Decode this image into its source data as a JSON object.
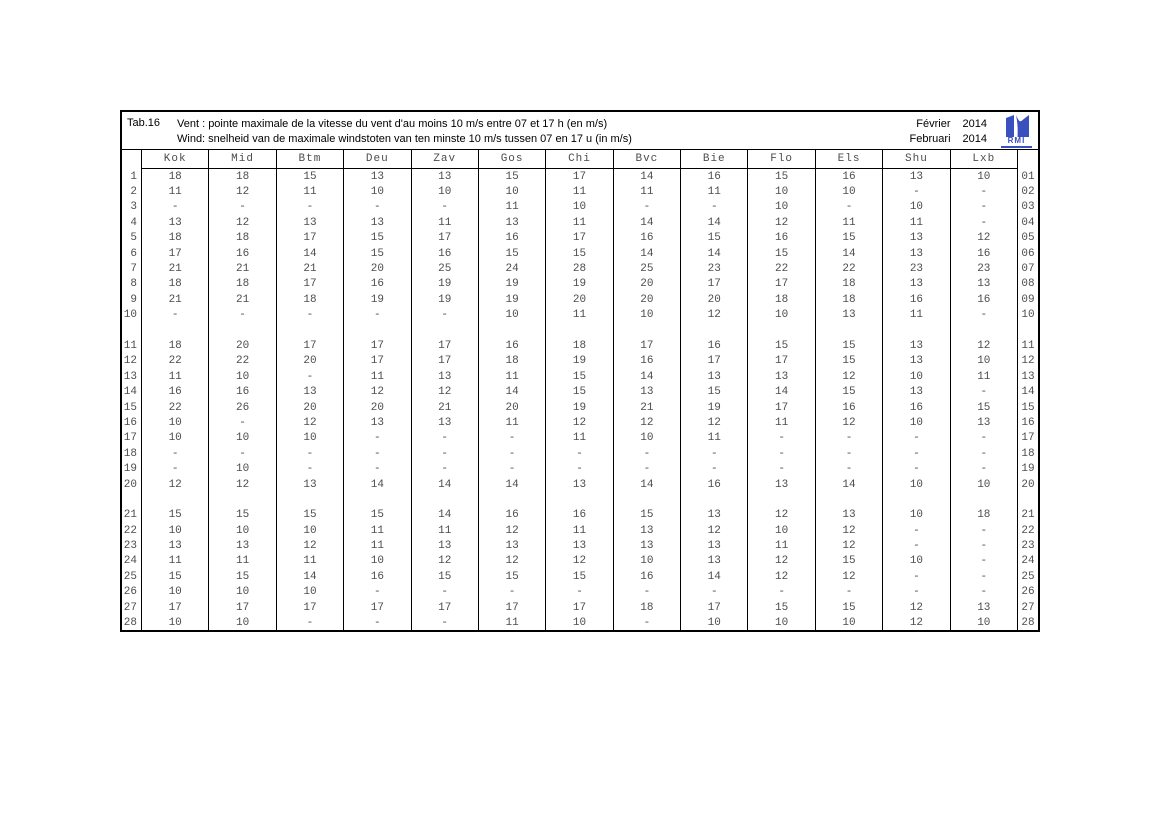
{
  "header": {
    "tab_label": "Tab.16",
    "title_fr": "Vent : pointe maximale de la vitesse du vent d'au moins 10 m/s entre 07 et 17 h (en m/s)",
    "title_nl": "Wind: snelheid van de maximale windstoten van ten minste 10 m/s tussen 07 en 17 u (in m/s)",
    "month_fr": "Février",
    "month_nl": "Februari",
    "year": "2014",
    "logo_text": "RMI",
    "logo_color": "#3a50bf"
  },
  "table": {
    "columns": [
      "Kok",
      "Mid",
      "Btm",
      "Deu",
      "Zav",
      "Gos",
      "Chi",
      "Bvc",
      "Bie",
      "Flo",
      "Els",
      "Shu",
      "Lxb"
    ],
    "missing_symbol": "-",
    "spacer_after_days": [
      "10",
      "20"
    ],
    "rows": [
      {
        "day": "1",
        "code": "01",
        "values": [
          "18",
          "18",
          "15",
          "13",
          "13",
          "15",
          "17",
          "14",
          "16",
          "15",
          "16",
          "13",
          "10"
        ]
      },
      {
        "day": "2",
        "code": "02",
        "values": [
          "11",
          "12",
          "11",
          "10",
          "10",
          "10",
          "11",
          "11",
          "11",
          "10",
          "10",
          "-",
          "-"
        ]
      },
      {
        "day": "3",
        "code": "03",
        "values": [
          "-",
          "-",
          "-",
          "-",
          "-",
          "11",
          "10",
          "-",
          "-",
          "10",
          "-",
          "10",
          "-"
        ]
      },
      {
        "day": "4",
        "code": "04",
        "values": [
          "13",
          "12",
          "13",
          "13",
          "11",
          "13",
          "11",
          "14",
          "14",
          "12",
          "11",
          "11",
          "-"
        ]
      },
      {
        "day": "5",
        "code": "05",
        "values": [
          "18",
          "18",
          "17",
          "15",
          "17",
          "16",
          "17",
          "16",
          "15",
          "16",
          "15",
          "13",
          "12"
        ]
      },
      {
        "day": "6",
        "code": "06",
        "values": [
          "17",
          "16",
          "14",
          "15",
          "16",
          "15",
          "15",
          "14",
          "14",
          "15",
          "14",
          "13",
          "16"
        ]
      },
      {
        "day": "7",
        "code": "07",
        "values": [
          "21",
          "21",
          "21",
          "20",
          "25",
          "24",
          "28",
          "25",
          "23",
          "22",
          "22",
          "23",
          "23"
        ]
      },
      {
        "day": "8",
        "code": "08",
        "values": [
          "18",
          "18",
          "17",
          "16",
          "19",
          "19",
          "19",
          "20",
          "17",
          "17",
          "18",
          "13",
          "13"
        ]
      },
      {
        "day": "9",
        "code": "09",
        "values": [
          "21",
          "21",
          "18",
          "19",
          "19",
          "19",
          "20",
          "20",
          "20",
          "18",
          "18",
          "16",
          "16"
        ]
      },
      {
        "day": "10",
        "code": "10",
        "values": [
          "-",
          "-",
          "-",
          "-",
          "-",
          "10",
          "11",
          "10",
          "12",
          "10",
          "13",
          "11",
          "-"
        ]
      },
      {
        "day": "11",
        "code": "11",
        "values": [
          "18",
          "20",
          "17",
          "17",
          "17",
          "16",
          "18",
          "17",
          "16",
          "15",
          "15",
          "13",
          "12"
        ]
      },
      {
        "day": "12",
        "code": "12",
        "values": [
          "22",
          "22",
          "20",
          "17",
          "17",
          "18",
          "19",
          "16",
          "17",
          "17",
          "15",
          "13",
          "10"
        ]
      },
      {
        "day": "13",
        "code": "13",
        "values": [
          "11",
          "10",
          "-",
          "11",
          "13",
          "11",
          "15",
          "14",
          "13",
          "13",
          "12",
          "10",
          "11"
        ]
      },
      {
        "day": "14",
        "code": "14",
        "values": [
          "16",
          "16",
          "13",
          "12",
          "12",
          "14",
          "15",
          "13",
          "15",
          "14",
          "15",
          "13",
          "-"
        ]
      },
      {
        "day": "15",
        "code": "15",
        "values": [
          "22",
          "26",
          "20",
          "20",
          "21",
          "20",
          "19",
          "21",
          "19",
          "17",
          "16",
          "16",
          "15"
        ]
      },
      {
        "day": "16",
        "code": "16",
        "values": [
          "10",
          "-",
          "12",
          "13",
          "13",
          "11",
          "12",
          "12",
          "12",
          "11",
          "12",
          "10",
          "13"
        ]
      },
      {
        "day": "17",
        "code": "17",
        "values": [
          "10",
          "10",
          "10",
          "-",
          "-",
          "-",
          "11",
          "10",
          "11",
          "-",
          "-",
          "-",
          "-"
        ]
      },
      {
        "day": "18",
        "code": "18",
        "values": [
          "-",
          "-",
          "-",
          "-",
          "-",
          "-",
          "-",
          "-",
          "-",
          "-",
          "-",
          "-",
          "-"
        ]
      },
      {
        "day": "19",
        "code": "19",
        "values": [
          "-",
          "10",
          "-",
          "-",
          "-",
          "-",
          "-",
          "-",
          "-",
          "-",
          "-",
          "-",
          "-"
        ]
      },
      {
        "day": "20",
        "code": "20",
        "values": [
          "12",
          "12",
          "13",
          "14",
          "14",
          "14",
          "13",
          "14",
          "16",
          "13",
          "14",
          "10",
          "10"
        ]
      },
      {
        "day": "21",
        "code": "21",
        "values": [
          "15",
          "15",
          "15",
          "15",
          "14",
          "16",
          "16",
          "15",
          "13",
          "12",
          "13",
          "10",
          "18"
        ]
      },
      {
        "day": "22",
        "code": "22",
        "values": [
          "10",
          "10",
          "10",
          "11",
          "11",
          "12",
          "11",
          "13",
          "12",
          "10",
          "12",
          "-",
          "-"
        ]
      },
      {
        "day": "23",
        "code": "23",
        "values": [
          "13",
          "13",
          "12",
          "11",
          "13",
          "13",
          "13",
          "13",
          "13",
          "11",
          "12",
          "-",
          "-"
        ]
      },
      {
        "day": "24",
        "code": "24",
        "values": [
          "11",
          "11",
          "11",
          "10",
          "12",
          "12",
          "12",
          "10",
          "13",
          "12",
          "15",
          "10",
          "-"
        ]
      },
      {
        "day": "25",
        "code": "25",
        "values": [
          "15",
          "15",
          "14",
          "16",
          "15",
          "15",
          "15",
          "16",
          "14",
          "12",
          "12",
          "-",
          "-"
        ]
      },
      {
        "day": "26",
        "code": "26",
        "values": [
          "10",
          "10",
          "10",
          "-",
          "-",
          "-",
          "-",
          "-",
          "-",
          "-",
          "-",
          "-",
          "-"
        ]
      },
      {
        "day": "27",
        "code": "27",
        "values": [
          "17",
          "17",
          "17",
          "17",
          "17",
          "17",
          "17",
          "18",
          "17",
          "15",
          "15",
          "12",
          "13"
        ]
      },
      {
        "day": "28",
        "code": "28",
        "values": [
          "10",
          "10",
          "-",
          "-",
          "-",
          "11",
          "10",
          "-",
          "10",
          "10",
          "10",
          "12",
          "10"
        ]
      }
    ]
  }
}
